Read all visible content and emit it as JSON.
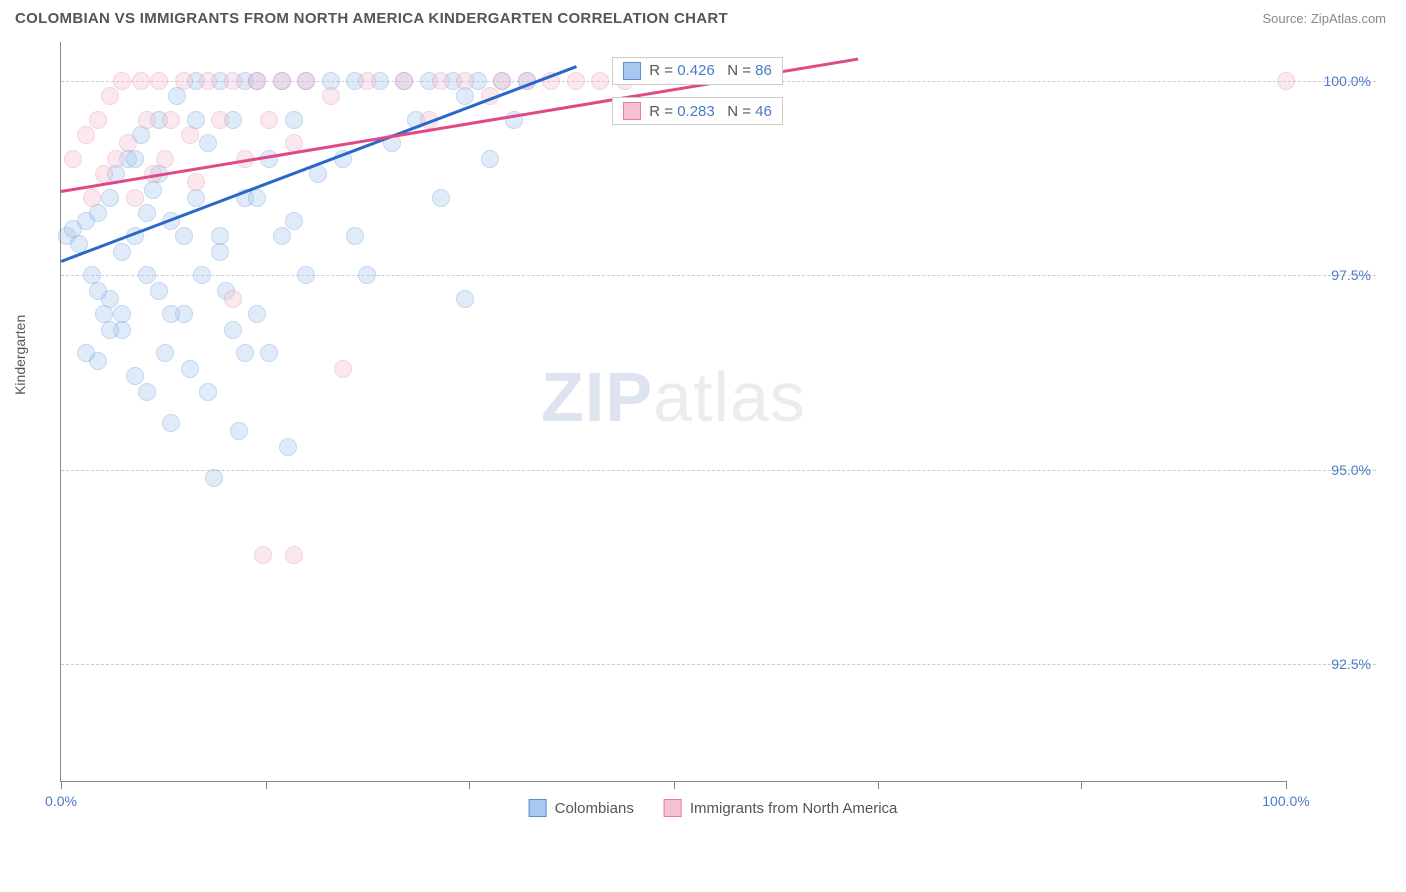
{
  "title": "COLOMBIAN VS IMMIGRANTS FROM NORTH AMERICA KINDERGARTEN CORRELATION CHART",
  "source": "Source: ZipAtlas.com",
  "y_axis_label": "Kindergarten",
  "watermark_zip": "ZIP",
  "watermark_atlas": "atlas",
  "chart": {
    "type": "scatter",
    "background_color": "#ffffff",
    "grid_color": "#cccccc",
    "axis_color": "#888888",
    "xlim": [
      0,
      100
    ],
    "ylim": [
      91.0,
      100.5
    ],
    "x_ticks": [
      0,
      16.7,
      33.3,
      50,
      66.7,
      83.3,
      100
    ],
    "x_tick_labels": {
      "0": "0.0%",
      "100": "100.0%"
    },
    "y_gridlines": [
      92.5,
      95.0,
      97.5,
      100.0
    ],
    "y_tick_labels": {
      "92.5": "92.5%",
      "95.0": "95.0%",
      "97.5": "97.5%",
      "100.0": "100.0%"
    },
    "marker_radius": 9,
    "marker_opacity": 0.35,
    "series": [
      {
        "name": "Colombians",
        "color_fill": "#a8c8f0",
        "color_stroke": "#5a8fd6",
        "R": "0.426",
        "N": "86",
        "trend": {
          "x1": 0,
          "y1": 97.7,
          "x2": 42,
          "y2": 100.2,
          "color": "#2968c8",
          "width": 2.5
        },
        "points": [
          [
            0.5,
            98.0
          ],
          [
            1,
            98.1
          ],
          [
            1.5,
            97.9
          ],
          [
            2,
            98.2
          ],
          [
            2.5,
            97.5
          ],
          [
            3,
            98.3
          ],
          [
            3,
            96.4
          ],
          [
            3.5,
            97.0
          ],
          [
            4,
            98.5
          ],
          [
            4,
            97.2
          ],
          [
            4.5,
            98.8
          ],
          [
            5,
            97.8
          ],
          [
            5,
            96.8
          ],
          [
            5.5,
            99.0
          ],
          [
            6,
            98.0
          ],
          [
            6,
            96.2
          ],
          [
            6.5,
            99.3
          ],
          [
            7,
            97.5
          ],
          [
            7,
            96.0
          ],
          [
            7.5,
            98.6
          ],
          [
            8,
            99.5
          ],
          [
            8,
            97.3
          ],
          [
            8.5,
            96.5
          ],
          [
            9,
            98.2
          ],
          [
            9,
            95.6
          ],
          [
            9.5,
            99.8
          ],
          [
            10,
            98.0
          ],
          [
            10,
            97.0
          ],
          [
            10.5,
            96.3
          ],
          [
            11,
            100.0
          ],
          [
            11,
            98.5
          ],
          [
            11.5,
            97.5
          ],
          [
            12,
            99.2
          ],
          [
            12,
            96.0
          ],
          [
            12.5,
            94.9
          ],
          [
            13,
            100.0
          ],
          [
            13,
            98.0
          ],
          [
            13.5,
            97.3
          ],
          [
            14,
            99.5
          ],
          [
            14,
            96.8
          ],
          [
            14.5,
            95.5
          ],
          [
            15,
            100.0
          ],
          [
            15,
            98.5
          ],
          [
            16,
            97.0
          ],
          [
            16,
            100.0
          ],
          [
            17,
            99.0
          ],
          [
            17,
            96.5
          ],
          [
            18,
            100.0
          ],
          [
            18,
            98.0
          ],
          [
            18.5,
            95.3
          ],
          [
            19,
            99.5
          ],
          [
            20,
            100.0
          ],
          [
            20,
            97.5
          ],
          [
            21,
            98.8
          ],
          [
            22,
            100.0
          ],
          [
            23,
            99.0
          ],
          [
            24,
            100.0
          ],
          [
            25,
            97.5
          ],
          [
            26,
            100.0
          ],
          [
            27,
            99.2
          ],
          [
            28,
            100.0
          ],
          [
            29,
            99.5
          ],
          [
            30,
            100.0
          ],
          [
            31,
            98.5
          ],
          [
            32,
            100.0
          ],
          [
            33,
            99.8
          ],
          [
            34,
            100.0
          ],
          [
            35,
            99.0
          ],
          [
            36,
            100.0
          ],
          [
            37,
            99.5
          ],
          [
            38,
            100.0
          ],
          [
            24,
            98.0
          ],
          [
            13,
            97.8
          ],
          [
            8,
            98.8
          ],
          [
            6,
            99.0
          ],
          [
            3,
            97.3
          ],
          [
            2,
            96.5
          ],
          [
            16,
            98.5
          ],
          [
            19,
            98.2
          ],
          [
            15,
            96.5
          ],
          [
            11,
            99.5
          ],
          [
            33,
            97.2
          ],
          [
            7,
            98.3
          ],
          [
            9,
            97.0
          ],
          [
            5,
            97.0
          ],
          [
            4,
            96.8
          ]
        ]
      },
      {
        "name": "Immigrants from North America",
        "color_fill": "#f5c0d0",
        "color_stroke": "#e57fa8",
        "R": "0.283",
        "N": "46",
        "trend": {
          "x1": 0,
          "y1": 98.6,
          "x2": 65,
          "y2": 100.3,
          "color": "#e04888",
          "width": 2.5
        },
        "points": [
          [
            1,
            99.0
          ],
          [
            2,
            99.3
          ],
          [
            2.5,
            98.5
          ],
          [
            3,
            99.5
          ],
          [
            3.5,
            98.8
          ],
          [
            4,
            99.8
          ],
          [
            4.5,
            99.0
          ],
          [
            5,
            100.0
          ],
          [
            5.5,
            99.2
          ],
          [
            6,
            98.5
          ],
          [
            6.5,
            100.0
          ],
          [
            7,
            99.5
          ],
          [
            7.5,
            98.8
          ],
          [
            8,
            100.0
          ],
          [
            8.5,
            99.0
          ],
          [
            9,
            99.5
          ],
          [
            10,
            100.0
          ],
          [
            10.5,
            99.3
          ],
          [
            11,
            98.7
          ],
          [
            12,
            100.0
          ],
          [
            13,
            99.5
          ],
          [
            14,
            100.0
          ],
          [
            14,
            97.2
          ],
          [
            15,
            99.0
          ],
          [
            16,
            100.0
          ],
          [
            16.5,
            93.9
          ],
          [
            17,
            99.5
          ],
          [
            18,
            100.0
          ],
          [
            19,
            99.2
          ],
          [
            19,
            93.9
          ],
          [
            20,
            100.0
          ],
          [
            22,
            99.8
          ],
          [
            23,
            96.3
          ],
          [
            25,
            100.0
          ],
          [
            28,
            100.0
          ],
          [
            30,
            99.5
          ],
          [
            31,
            100.0
          ],
          [
            33,
            100.0
          ],
          [
            35,
            99.8
          ],
          [
            36,
            100.0
          ],
          [
            38,
            100.0
          ],
          [
            40,
            100.0
          ],
          [
            42,
            100.0
          ],
          [
            44,
            100.0
          ],
          [
            46,
            100.0
          ],
          [
            100,
            100.0
          ]
        ]
      }
    ],
    "legend_boxes": [
      {
        "series_idx": 0,
        "top_pct": 2,
        "left_pct": 45
      },
      {
        "series_idx": 1,
        "top_pct": 7.5,
        "left_pct": 45
      }
    ]
  }
}
